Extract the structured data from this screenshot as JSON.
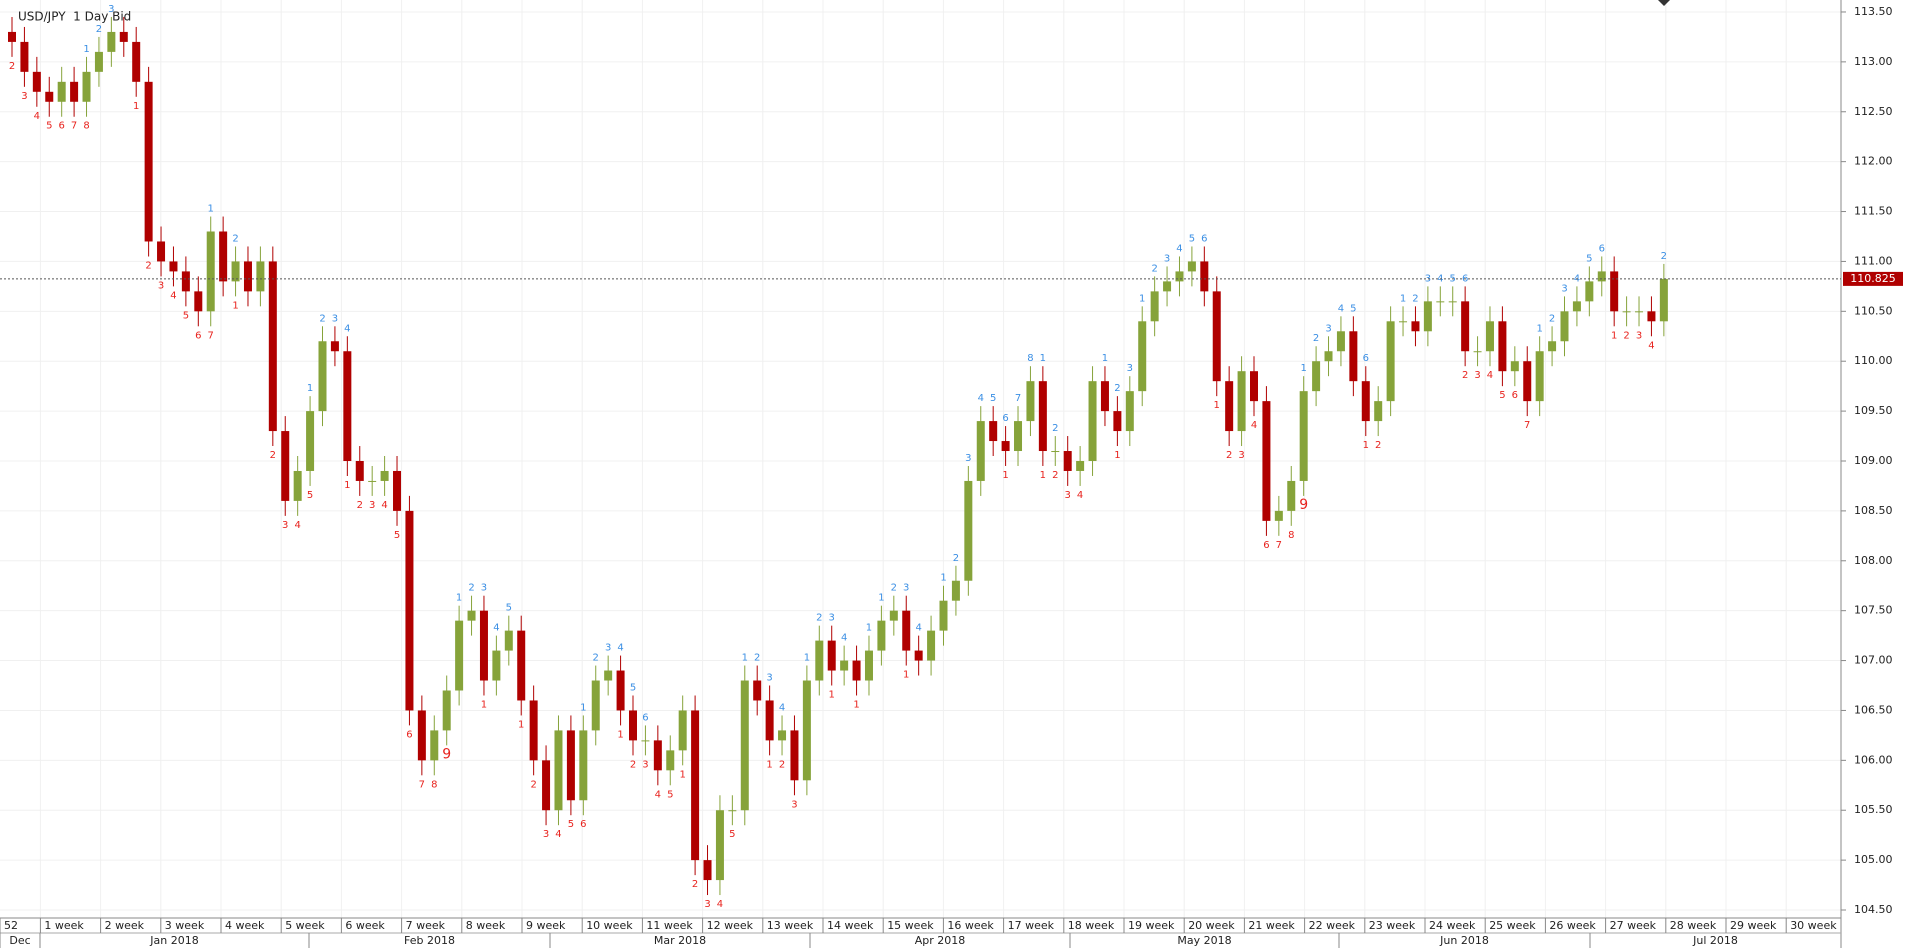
{
  "chart_data": {
    "type": "candlestick",
    "title": "USD/JPY  1 Day Bid",
    "up_color": "#86a33a",
    "down_color": "#b00000",
    "buy_count_color": "#e8231e",
    "sell_count_color": "#3b8fe4",
    "ylim": [
      104.43,
      113.62
    ],
    "yticks": [
      {
        "value": 104.5,
        "label": "104.50"
      },
      {
        "value": 105,
        "label": "105.00"
      },
      {
        "value": 105.5,
        "label": "105.50"
      },
      {
        "value": 106,
        "label": "106.00"
      },
      {
        "value": 106.5,
        "label": "106.50"
      },
      {
        "value": 107,
        "label": "107.00"
      },
      {
        "value": 107.5,
        "label": "107.50"
      },
      {
        "value": 108,
        "label": "108.00"
      },
      {
        "value": 108.5,
        "label": "108.50"
      },
      {
        "value": 109,
        "label": "109.00"
      },
      {
        "value": 109.5,
        "label": "109.50"
      },
      {
        "value": 110,
        "label": "110.00"
      },
      {
        "value": 110.5,
        "label": "110.50"
      },
      {
        "value": 111,
        "label": "111.00"
      },
      {
        "value": 111.5,
        "label": "111.50"
      },
      {
        "value": 112,
        "label": "112.00"
      },
      {
        "value": 112.5,
        "label": "112.50"
      },
      {
        "value": 113,
        "label": "113.00"
      },
      {
        "value": 113.5,
        "label": "113.50"
      }
    ],
    "grid": true,
    "last_price": 110.825,
    "weeks": [
      "52",
      "1 week",
      "2 week",
      "3 week",
      "4 week",
      "5 week",
      "6 week",
      "7 week",
      "8 week",
      "9 week",
      "10 week",
      "11 week",
      "12 week",
      "13 week",
      "14 week",
      "15 week",
      "16 week",
      "17 week",
      "18 week",
      "19 week",
      "20 week",
      "21 week",
      "22 week",
      "23 week",
      "24 week",
      "25 week",
      "26 week",
      "27 week",
      "28 week",
      "29 week",
      "30 week"
    ],
    "months": [
      "Dec",
      "Jan 2018",
      "Feb 2018",
      "Mar 2018",
      "Apr 2018",
      "May 2018",
      "Jun 2018",
      "Jul 2018"
    ],
    "open": [
      113.3,
      113.2,
      112.9,
      112.7,
      112.6,
      112.8,
      112.6,
      112.9,
      113.1,
      113.3,
      113.2,
      112.8,
      111.2,
      111.0,
      110.9,
      110.7,
      110.5,
      111.3,
      110.8,
      111.0,
      110.7,
      111.0,
      109.3,
      108.6,
      108.9,
      109.5,
      110.2,
      110.1,
      109.0,
      108.8,
      108.8,
      108.9,
      108.5,
      106.5,
      106.0,
      106.3,
      106.7,
      107.4,
      107.5,
      106.8,
      107.1,
      107.3,
      106.6,
      106.0,
      105.5,
      106.3,
      105.6,
      106.3,
      106.8,
      106.9,
      106.5,
      106.2,
      106.2,
      105.9,
      106.1,
      106.5,
      105.0,
      104.8,
      105.5,
      105.5,
      106.8,
      106.6,
      106.2,
      106.3,
      105.8,
      106.8,
      107.2,
      106.9,
      107.0,
      106.8,
      107.1,
      107.4,
      107.5,
      107.1,
      107.0,
      107.3,
      107.6,
      107.8,
      108.8,
      109.4,
      109.2,
      109.1,
      109.4,
      109.8,
      109.1,
      109.1,
      108.9,
      109.0,
      109.8,
      109.5,
      109.3,
      109.7,
      110.4,
      110.7,
      110.8,
      110.9,
      111.0,
      110.7,
      109.8,
      109.3,
      109.9,
      109.6,
      108.4,
      108.5,
      108.8,
      109.7,
      110.0,
      110.1,
      110.3,
      109.8,
      109.4,
      109.6,
      110.4,
      110.4,
      110.3,
      110.6,
      110.6,
      110.6,
      110.1,
      110.1,
      110.4,
      109.9,
      110.0,
      109.6,
      110.1,
      110.2,
      110.5,
      110.6,
      110.8,
      110.9,
      110.5,
      110.5,
      110.5,
      110.4
    ],
    "high": [
      113.45,
      113.35,
      113.05,
      112.85,
      112.95,
      112.95,
      113.05,
      113.25,
      113.45,
      113.45,
      113.35,
      112.95,
      111.35,
      111.15,
      111.05,
      110.85,
      111.45,
      111.45,
      111.15,
      111.15,
      111.15,
      111.15,
      109.45,
      109.05,
      109.65,
      110.35,
      110.35,
      110.25,
      109.15,
      108.95,
      109.05,
      109.05,
      108.65,
      106.65,
      106.45,
      106.85,
      107.55,
      107.65,
      107.65,
      107.25,
      107.45,
      107.45,
      106.75,
      106.15,
      106.45,
      106.45,
      106.45,
      106.95,
      107.05,
      107.05,
      106.65,
      106.35,
      106.35,
      106.25,
      106.65,
      106.65,
      105.15,
      105.65,
      105.65,
      106.95,
      106.95,
      106.75,
      106.45,
      106.45,
      106.95,
      107.35,
      107.35,
      107.15,
      107.15,
      107.25,
      107.55,
      107.65,
      107.65,
      107.25,
      107.45,
      107.75,
      107.95,
      108.95,
      109.55,
      109.55,
      109.35,
      109.55,
      109.95,
      109.95,
      109.25,
      109.25,
      109.15,
      109.95,
      109.95,
      109.65,
      109.85,
      110.55,
      110.85,
      110.95,
      111.05,
      111.15,
      111.15,
      110.85,
      109.95,
      110.05,
      110.05,
      109.75,
      108.65,
      108.95,
      109.85,
      110.15,
      110.25,
      110.45,
      110.45,
      109.95,
      109.75,
      110.55,
      110.55,
      110.55,
      110.75,
      110.75,
      110.75,
      110.75,
      110.25,
      110.55,
      110.55,
      110.15,
      110.15,
      110.25,
      110.35,
      110.65,
      110.75,
      110.95,
      111.05,
      111.05,
      110.65,
      110.65,
      110.65,
      110.975
    ],
    "low": [
      113.05,
      112.75,
      112.55,
      112.45,
      112.45,
      112.45,
      112.45,
      112.75,
      112.95,
      113.05,
      112.65,
      111.05,
      110.85,
      110.75,
      110.55,
      110.35,
      110.35,
      110.65,
      110.65,
      110.55,
      110.55,
      109.15,
      108.45,
      108.45,
      108.75,
      109.35,
      109.95,
      108.85,
      108.65,
      108.65,
      108.65,
      108.35,
      106.35,
      105.85,
      105.85,
      106.15,
      106.55,
      107.25,
      106.65,
      106.65,
      106.95,
      106.45,
      105.85,
      105.35,
      105.35,
      105.45,
      105.45,
      106.15,
      106.65,
      106.35,
      106.05,
      106.05,
      105.75,
      105.75,
      105.95,
      104.85,
      104.65,
      104.65,
      105.35,
      105.35,
      106.45,
      106.05,
      106.05,
      105.65,
      105.65,
      106.65,
      106.75,
      106.75,
      106.65,
      106.65,
      106.95,
      107.25,
      106.95,
      106.85,
      106.85,
      107.15,
      107.45,
      107.65,
      108.65,
      109.05,
      108.95,
      108.95,
      109.25,
      108.95,
      108.95,
      108.75,
      108.75,
      108.85,
      109.35,
      109.15,
      109.15,
      109.55,
      110.25,
      110.55,
      110.65,
      110.75,
      110.55,
      109.65,
      109.15,
      109.15,
      109.45,
      108.25,
      108.25,
      108.35,
      108.65,
      109.55,
      109.85,
      109.95,
      109.65,
      109.25,
      109.25,
      109.45,
      110.25,
      110.15,
      110.15,
      110.45,
      110.45,
      109.95,
      109.95,
      109.95,
      109.75,
      109.75,
      109.45,
      109.45,
      109.95,
      110.05,
      110.35,
      110.45,
      110.65,
      110.35,
      110.35,
      110.35,
      110.25,
      110.25
    ],
    "close": [
      113.2,
      112.9,
      112.7,
      112.6,
      112.8,
      112.6,
      112.9,
      113.1,
      113.3,
      113.2,
      112.8,
      111.2,
      111.0,
      110.9,
      110.7,
      110.5,
      111.3,
      110.8,
      111.0,
      110.7,
      111.0,
      109.3,
      108.6,
      108.9,
      109.5,
      110.2,
      110.1,
      109.0,
      108.8,
      108.8,
      108.9,
      108.5,
      106.5,
      106.0,
      106.3,
      106.7,
      107.4,
      107.5,
      106.8,
      107.1,
      107.3,
      106.6,
      106.0,
      105.5,
      106.3,
      105.6,
      106.3,
      106.8,
      106.9,
      106.5,
      106.2,
      106.2,
      105.9,
      106.1,
      106.5,
      105.0,
      104.8,
      105.5,
      105.5,
      106.8,
      106.6,
      106.2,
      106.3,
      105.8,
      106.8,
      107.2,
      106.9,
      107.0,
      106.8,
      107.1,
      107.4,
      107.5,
      107.1,
      107.0,
      107.3,
      107.6,
      107.8,
      108.8,
      109.4,
      109.2,
      109.1,
      109.4,
      109.8,
      109.1,
      109.1,
      108.9,
      109.0,
      109.8,
      109.5,
      109.3,
      109.7,
      110.4,
      110.7,
      110.8,
      110.9,
      111.0,
      110.7,
      109.8,
      109.3,
      109.9,
      109.6,
      108.4,
      108.5,
      108.8,
      109.7,
      110.0,
      110.1,
      110.3,
      109.8,
      109.4,
      109.6,
      110.4,
      110.4,
      110.3,
      110.6,
      110.6,
      110.6,
      110.1,
      110.1,
      110.4,
      109.9,
      110.0,
      109.6,
      110.1,
      110.2,
      110.5,
      110.6,
      110.8,
      110.9,
      110.5,
      110.5,
      110.5,
      110.4,
      110.825
    ],
    "buy_counts": [
      2,
      3,
      4,
      5,
      6,
      7,
      8,
      null,
      null,
      null,
      1,
      2,
      3,
      4,
      5,
      6,
      7,
      null,
      1,
      null,
      null,
      2,
      3,
      4,
      5,
      null,
      null,
      1,
      2,
      3,
      4,
      5,
      6,
      7,
      8,
      9,
      null,
      null,
      1,
      null,
      null,
      1,
      2,
      3,
      4,
      5,
      6,
      null,
      null,
      1,
      2,
      3,
      4,
      5,
      1,
      2,
      3,
      4,
      5,
      null,
      null,
      1,
      2,
      3,
      null,
      null,
      1,
      null,
      1,
      null,
      null,
      null,
      1,
      null,
      null,
      null,
      null,
      null,
      null,
      null,
      1,
      null,
      null,
      1,
      2,
      3,
      4,
      null,
      null,
      1,
      null,
      null,
      null,
      null,
      null,
      null,
      null,
      1,
      2,
      3,
      4,
      6,
      7,
      8,
      9,
      null,
      null,
      null,
      null,
      1,
      2,
      null,
      null,
      null,
      null,
      null,
      null,
      2,
      3,
      4,
      5,
      6,
      7,
      null,
      null,
      null,
      null,
      null,
      null,
      1,
      2,
      3,
      4,
      null
    ],
    "sell_counts": [
      null,
      null,
      null,
      null,
      null,
      null,
      1,
      2,
      3,
      null,
      null,
      null,
      null,
      null,
      null,
      null,
      1,
      null,
      2,
      null,
      null,
      null,
      null,
      null,
      1,
      2,
      3,
      4,
      null,
      null,
      null,
      null,
      null,
      null,
      null,
      null,
      1,
      2,
      3,
      4,
      5,
      null,
      null,
      null,
      null,
      null,
      1,
      2,
      3,
      4,
      5,
      6,
      null,
      null,
      null,
      null,
      null,
      null,
      null,
      1,
      2,
      3,
      4,
      null,
      1,
      2,
      3,
      4,
      null,
      1,
      1,
      2,
      3,
      4,
      null,
      1,
      2,
      3,
      4,
      5,
      6,
      7,
      8,
      1,
      2,
      null,
      null,
      null,
      1,
      2,
      3,
      1,
      2,
      3,
      4,
      5,
      6,
      null,
      null,
      null,
      null,
      null,
      null,
      null,
      1,
      2,
      3,
      4,
      5,
      6,
      null,
      null,
      1,
      2,
      3,
      4,
      5,
      6,
      null,
      null,
      null,
      null,
      null,
      1,
      2,
      3,
      4,
      5,
      6,
      null,
      null,
      null,
      null,
      2
    ]
  }
}
